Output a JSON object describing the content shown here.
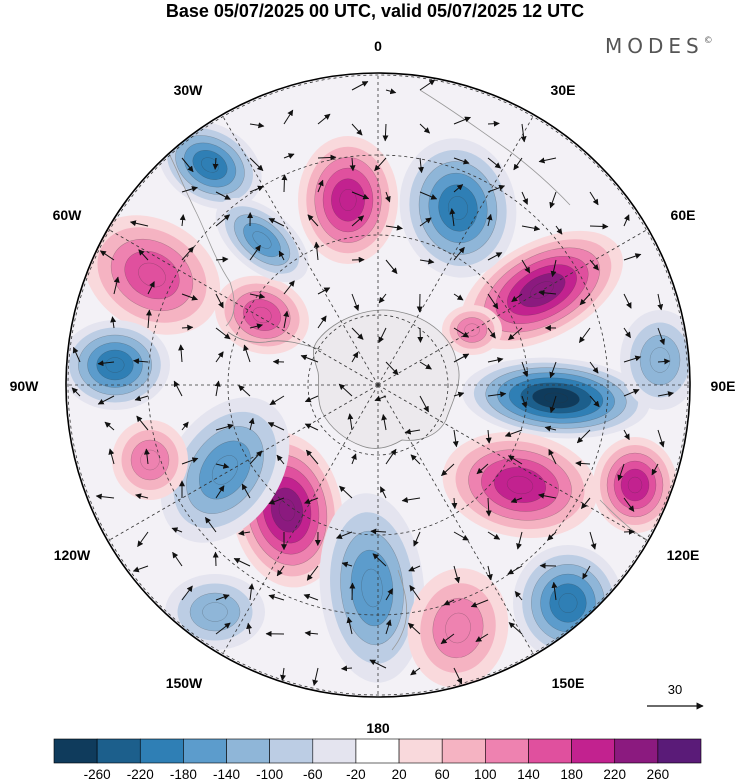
{
  "title": "Base 05/07/2025 00 UTC, valid 05/07/2025 12 UTC",
  "brand": {
    "name": "MODES",
    "mark": "©"
  },
  "map": {
    "projection": "south-polar-stereographic",
    "longitude_labels": [
      "0",
      "30E",
      "60E",
      "90E",
      "120E",
      "150E",
      "180",
      "150W",
      "120W",
      "90W",
      "60W",
      "30W"
    ],
    "reference_vector_label": "30",
    "anomaly_centers": [
      {
        "sign": "positive",
        "value": 250
      },
      {
        "sign": "negative",
        "value": -260
      },
      {
        "sign": "positive",
        "value": 180
      },
      {
        "sign": "positive",
        "value": 160
      },
      {
        "sign": "negative",
        "value": -200
      },
      {
        "sign": "negative",
        "value": -200
      },
      {
        "sign": "positive",
        "value": 140
      },
      {
        "sign": "positive",
        "value": 220
      },
      {
        "sign": "negative",
        "value": -200
      },
      {
        "sign": "negative",
        "value": -160
      },
      {
        "sign": "positive",
        "value": 200
      },
      {
        "sign": "positive",
        "value": 190
      },
      {
        "sign": "negative",
        "value": -160
      },
      {
        "sign": "positive",
        "value": 120
      },
      {
        "sign": "negative",
        "value": -180
      },
      {
        "sign": "positive",
        "value": 120
      },
      {
        "sign": "negative",
        "value": -140
      },
      {
        "sign": "negative",
        "value": -110
      },
      {
        "sign": "negative",
        "value": -100
      },
      {
        "sign": "positive",
        "value": 110
      }
    ]
  },
  "colorbar": {
    "labels": [
      "-260",
      "-220",
      "-180",
      "-140",
      "-100",
      "-60",
      "-20",
      "20",
      "60",
      "100",
      "140",
      "180",
      "220",
      "260"
    ],
    "colors": [
      "#0f3b5c",
      "#1c5f8c",
      "#2f7fb5",
      "#5c9ccc",
      "#8fb6d8",
      "#bccde4",
      "#e4e4ef",
      "#ffffff",
      "#f9d9dc",
      "#f5b3c2",
      "#ee82b0",
      "#e0509e",
      "#c2228f",
      "#8b1a7f",
      "#5a1b78"
    ]
  }
}
